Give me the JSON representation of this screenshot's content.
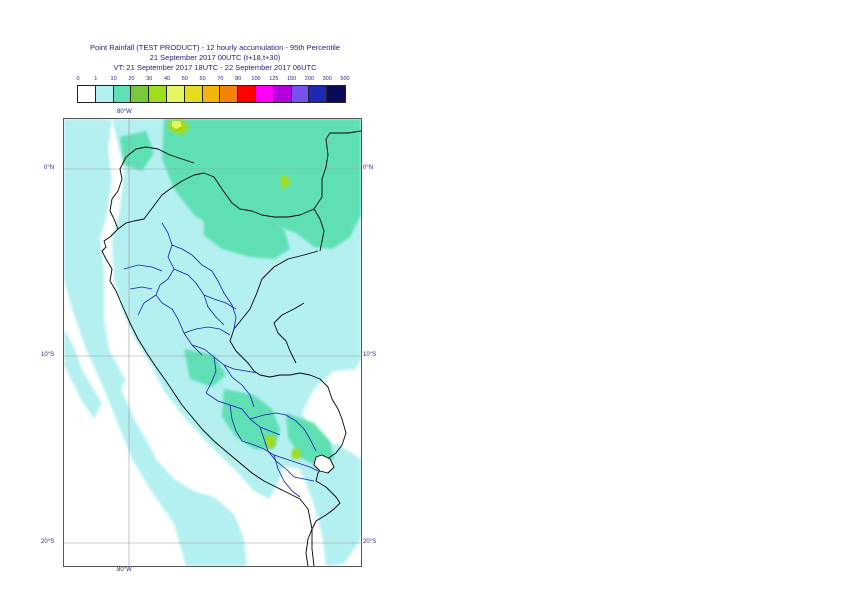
{
  "header": {
    "line1": "Point Rainfall (TEST PRODUCT) - 12 hourly accumulation - 95th Percentile",
    "line2": "21 September 2017 00UTC (t+18,t+30)",
    "line3": "VT: 21 September 2017 18UTC - 22 September 2017 06UTC"
  },
  "legend": {
    "labels": [
      "0",
      "1",
      "10",
      "20",
      "30",
      "40",
      "50",
      "60",
      "70",
      "80",
      "100",
      "125",
      "150",
      "200",
      "300",
      "500"
    ],
    "colors": [
      "#ffffff",
      "#b4f0f0",
      "#5ee0b4",
      "#78c83c",
      "#a0dc1e",
      "#e6f564",
      "#e6dc1e",
      "#f5b40a",
      "#f5820a",
      "#ff0000",
      "#ff00ff",
      "#b400dc",
      "#7850f0",
      "#1e28b4",
      "#0a0a5a"
    ]
  },
  "map": {
    "lon_label_top": "80°W",
    "lon_label_bottom": "80°W",
    "lat_labels_left": [
      "0°N",
      "10°S",
      "20°S"
    ],
    "lat_labels_right": [
      "0°N",
      "10°S",
      "20°S"
    ],
    "colors": {
      "light": "#b4f0f0",
      "medium": "#5ee0b4",
      "green": "#a0dc1e",
      "yellow": "#e6f564",
      "coast": "#000000",
      "admin": "#1a1ab4",
      "grid": "#9a9a9a"
    }
  }
}
